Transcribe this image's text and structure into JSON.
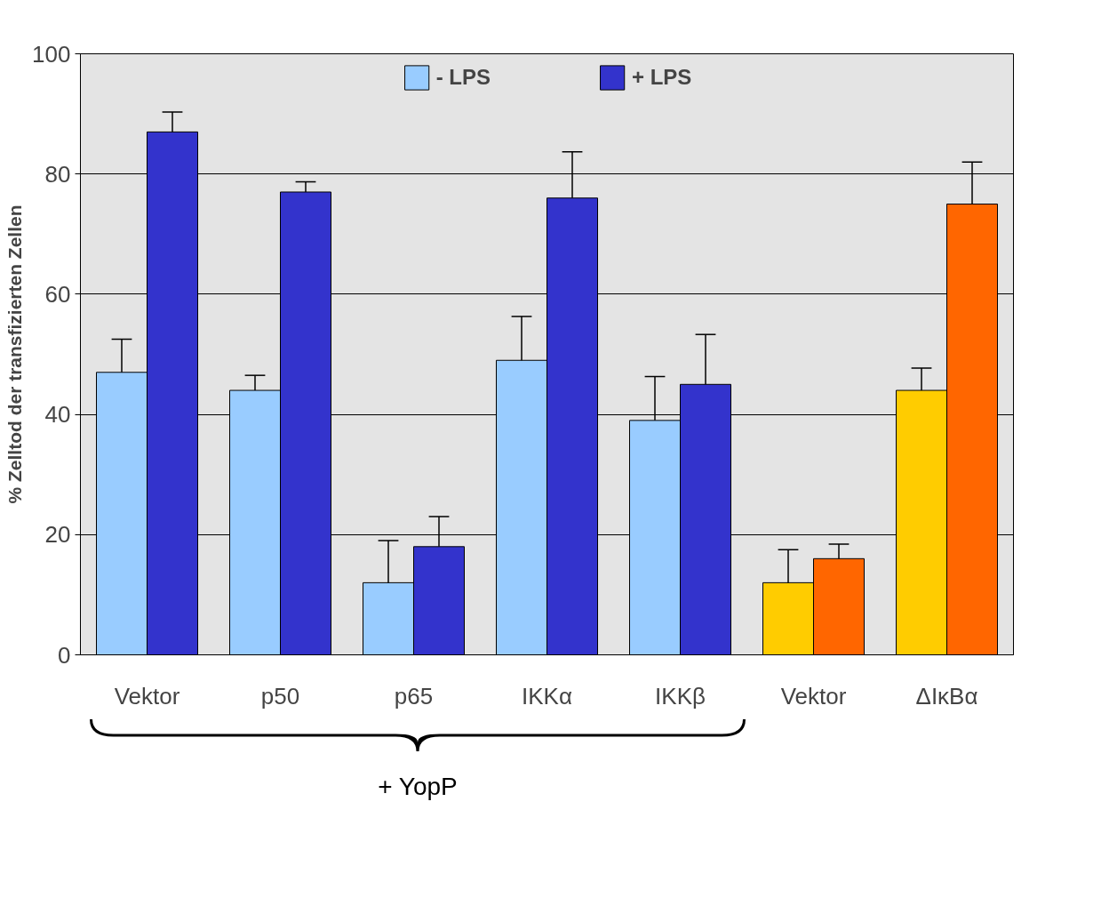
{
  "chart_data": {
    "type": "bar",
    "categories": [
      "Vektor",
      "p50",
      "p65",
      "IKKα",
      "IKKβ",
      "Vektor",
      "ΔIκBα"
    ],
    "ylabel": "% Zelltod der transfizierten Zellen",
    "series": [
      {
        "name": "- LPS",
        "colors": [
          "#99ccff",
          "#99ccff",
          "#99ccff",
          "#99ccff",
          "#99ccff",
          "#ffcc00",
          "#ffcc00"
        ],
        "values": [
          47,
          44,
          12,
          49,
          39,
          12,
          44
        ],
        "errors": [
          [
            47,
            52.5
          ],
          [
            44,
            46.5
          ],
          [
            12,
            19
          ],
          [
            49,
            56.3
          ],
          [
            39,
            46.3
          ],
          [
            12,
            17.5
          ],
          [
            44,
            47.7
          ]
        ]
      },
      {
        "name": "+ LPS",
        "colors": [
          "#3333cc",
          "#3333cc",
          "#3333cc",
          "#3333cc",
          "#3333cc",
          "#ff6600",
          "#ff6600"
        ],
        "values": [
          87,
          77,
          18,
          76,
          45,
          16,
          75
        ],
        "errors": [
          [
            87,
            90.3
          ],
          [
            77,
            78.7
          ],
          [
            18,
            23
          ],
          [
            76,
            83.7
          ],
          [
            45,
            53.3
          ],
          [
            16,
            18.4
          ],
          [
            75,
            82
          ]
        ]
      }
    ],
    "ylim": [
      0,
      100
    ],
    "yticks": [
      0,
      20,
      40,
      60,
      80,
      100
    ],
    "grid": "y",
    "legend": "top",
    "annotations": [
      "+ YopP"
    ]
  }
}
